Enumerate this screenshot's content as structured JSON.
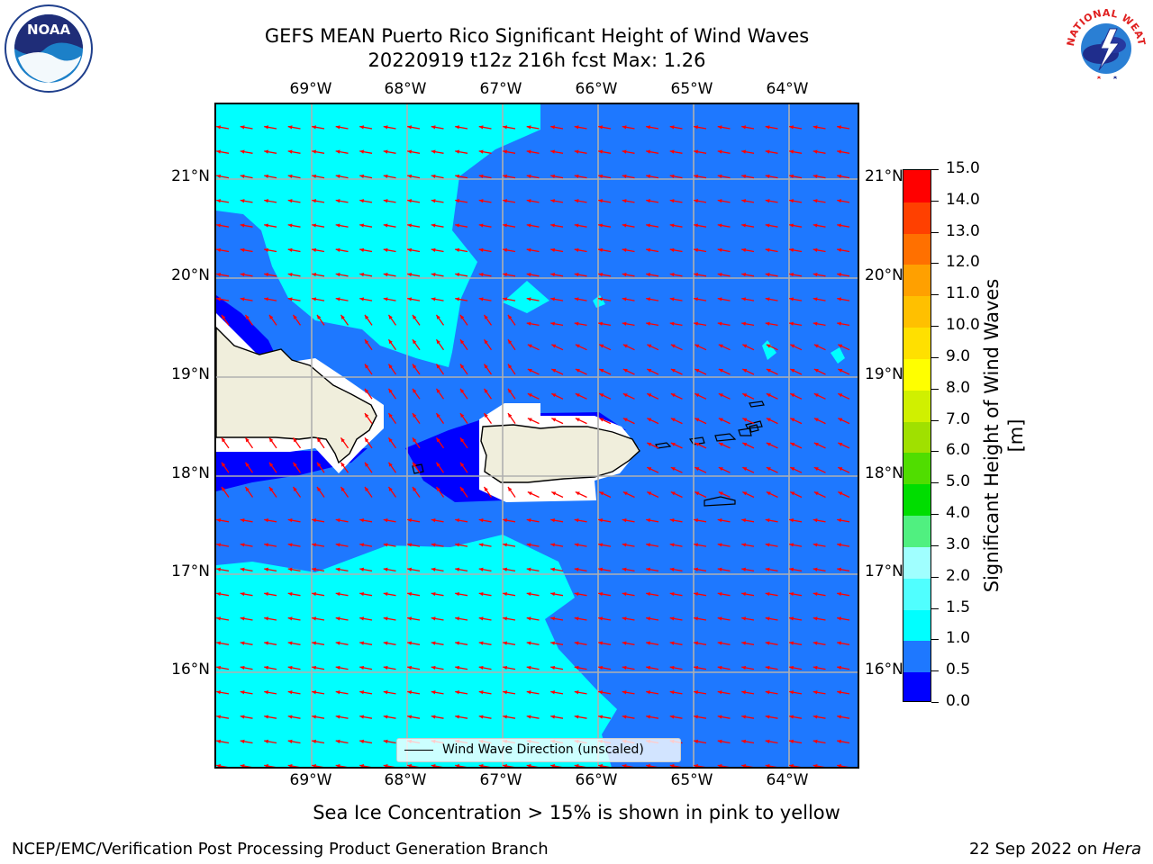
{
  "title": {
    "line1": "GEFS MEAN Puerto Rico Significant Height of Wind Waves",
    "line2": "20220919 t12z 216h fcst   Max: 1.26"
  },
  "logos": {
    "left": {
      "name": "noaa-logo",
      "text": "NOAA"
    },
    "right": {
      "name": "nws-logo",
      "text": "NATIONAL WEATHER SERVICE"
    }
  },
  "map": {
    "lon_labels": [
      "69°W",
      "68°W",
      "67°W",
      "66°W",
      "65°W",
      "64°W"
    ],
    "lat_labels": [
      "21°N",
      "20°N",
      "19°N",
      "18°N",
      "17°N",
      "16°N"
    ],
    "extent": {
      "lon_min": -70.0,
      "lon_max": -63.25,
      "lat_min": 15.0,
      "lat_max": 21.75
    },
    "colors": {
      "very_low": "#0000ff",
      "low": "#1e78ff",
      "mid": "#00ffff",
      "land": "#f0eedc",
      "arrow": "#ff0000",
      "grid": "#b0b0b0"
    },
    "arrow_direction": "toward west-southwest"
  },
  "legend": {
    "label": "Wind Wave Direction (unscaled)"
  },
  "colorbar": {
    "label": "Significant Height of Wind Waves [m]",
    "ticks": [
      "0.0",
      "0.5",
      "1.0",
      "1.5",
      "2.0",
      "3.0",
      "4.0",
      "5.0",
      "6.0",
      "7.0",
      "8.0",
      "9.0",
      "10.0",
      "11.0",
      "12.0",
      "13.0",
      "14.0",
      "15.0"
    ],
    "colors": [
      "#0000ff",
      "#1e78ff",
      "#00ffff",
      "#50ffff",
      "#a0ffff",
      "#50f080",
      "#00dd00",
      "#50dd00",
      "#a0e000",
      "#d0f000",
      "#ffff00",
      "#ffe000",
      "#ffc000",
      "#ffa000",
      "#ff7000",
      "#ff4000",
      "#ff0000"
    ]
  },
  "subtitle": "Sea Ice Concentration > 15% is shown in pink to yellow",
  "footer": {
    "left": "NCEP/EMC/Verification Post Processing Product Generation Branch",
    "right_date": "22 Sep 2022 on ",
    "right_host": "Hera"
  }
}
